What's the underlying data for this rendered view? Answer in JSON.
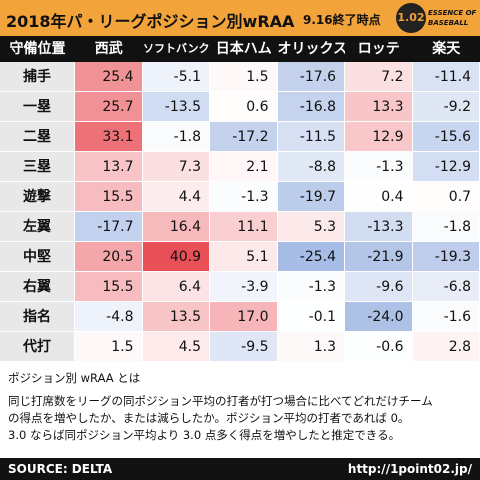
{
  "header": {
    "title": "2018年パ・リーグポジション別wRAA",
    "subtitle": "9.16終了時点",
    "logo_number": "1.02",
    "logo_text": [
      "ESSENCE OF",
      "BASEBALL"
    ]
  },
  "table": {
    "columns": [
      "守備位置",
      "西武",
      "ソフトバンク",
      "日本ハム",
      "オリックス",
      "ロッテ",
      "楽天"
    ],
    "rows": [
      [
        "捕手",
        "25.4",
        "-5.1",
        "1.5",
        "-17.6",
        "7.2",
        "-11.4"
      ],
      [
        "一塁",
        "25.7",
        "-13.5",
        "0.6",
        "-16.8",
        "13.3",
        "-9.2"
      ],
      [
        "二塁",
        "33.1",
        "-1.8",
        "-17.2",
        "-11.5",
        "12.9",
        "-15.6"
      ],
      [
        "三塁",
        "13.7",
        "7.3",
        "2.1",
        "-8.8",
        "-1.3",
        "-12.9"
      ],
      [
        "遊撃",
        "15.5",
        "4.4",
        "-1.3",
        "-19.7",
        "0.4",
        "0.7"
      ],
      [
        "左翼",
        "-17.7",
        "16.4",
        "11.1",
        "5.3",
        "-13.3",
        "-1.8"
      ],
      [
        "中堅",
        "20.5",
        "40.9",
        "5.1",
        "-25.4",
        "-21.9",
        "-19.3"
      ],
      [
        "右翼",
        "15.5",
        "6.4",
        "-3.9",
        "-1.3",
        "-9.6",
        "-6.8"
      ],
      [
        "指名",
        "-4.8",
        "13.5",
        "17.0",
        "-0.1",
        "-24.0",
        "-1.6"
      ],
      [
        "代打",
        "1.5",
        "4.5",
        "-9.5",
        "1.3",
        "-0.6",
        "2.8"
      ]
    ]
  },
  "note": {
    "heading": "ポジション別 wRAA とは",
    "lines": [
      "同じ打席数をリーグの同ポジション平均の打者が打つ場合に比べてどれだけチーム",
      "の得点を増やしたか、または減らしたか。ポジション平均の打者であれば 0。",
      "3.0 ならば同ポジション平均より 3.0 点多く得点を増やしたと推定できる。"
    ]
  },
  "footer": {
    "source": "SOURCE: DELTA",
    "url": "http://1point02.jp/"
  }
}
